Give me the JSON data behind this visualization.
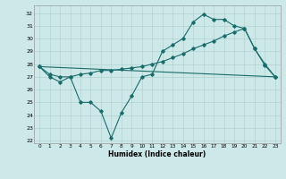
{
  "xlabel": "Humidex (Indice chaleur)",
  "bg_color": "#cce8e8",
  "grid_color": "#aacccc",
  "line_color": "#1a6b6b",
  "xlim": [
    -0.5,
    23.5
  ],
  "ylim": [
    21.8,
    32.6
  ],
  "yticks": [
    22,
    23,
    24,
    25,
    26,
    27,
    28,
    29,
    30,
    31,
    32
  ],
  "xticks": [
    0,
    1,
    2,
    3,
    4,
    5,
    6,
    7,
    8,
    9,
    10,
    11,
    12,
    13,
    14,
    15,
    16,
    17,
    18,
    19,
    20,
    21,
    22,
    23
  ],
  "line_wavy": {
    "x": [
      0,
      1,
      2,
      3,
      4,
      5,
      6,
      7,
      8,
      9,
      10,
      11,
      12,
      13,
      14,
      15,
      16,
      17,
      18,
      19,
      20,
      21,
      22,
      23
    ],
    "y": [
      27.8,
      27.0,
      26.6,
      27.0,
      25.0,
      25.0,
      24.3,
      22.2,
      24.2,
      25.5,
      27.0,
      27.2,
      29.0,
      29.5,
      30.0,
      31.3,
      31.9,
      31.5,
      31.5,
      31.0,
      30.8,
      29.2,
      27.9,
      27.0
    ]
  },
  "line_upper": {
    "x": [
      0,
      1,
      2,
      3,
      4,
      5,
      6,
      7,
      8,
      9,
      10,
      11,
      12,
      13,
      14,
      15,
      16,
      17,
      18,
      19,
      20,
      21,
      22,
      23
    ],
    "y": [
      27.8,
      27.2,
      27.0,
      27.0,
      27.2,
      27.3,
      27.5,
      27.5,
      27.6,
      27.7,
      27.8,
      28.0,
      28.2,
      28.5,
      28.8,
      29.2,
      29.5,
      29.8,
      30.2,
      30.5,
      30.8,
      29.2,
      28.0,
      27.0
    ]
  },
  "line_straight": {
    "x": [
      0,
      23
    ],
    "y": [
      27.8,
      27.0
    ]
  }
}
